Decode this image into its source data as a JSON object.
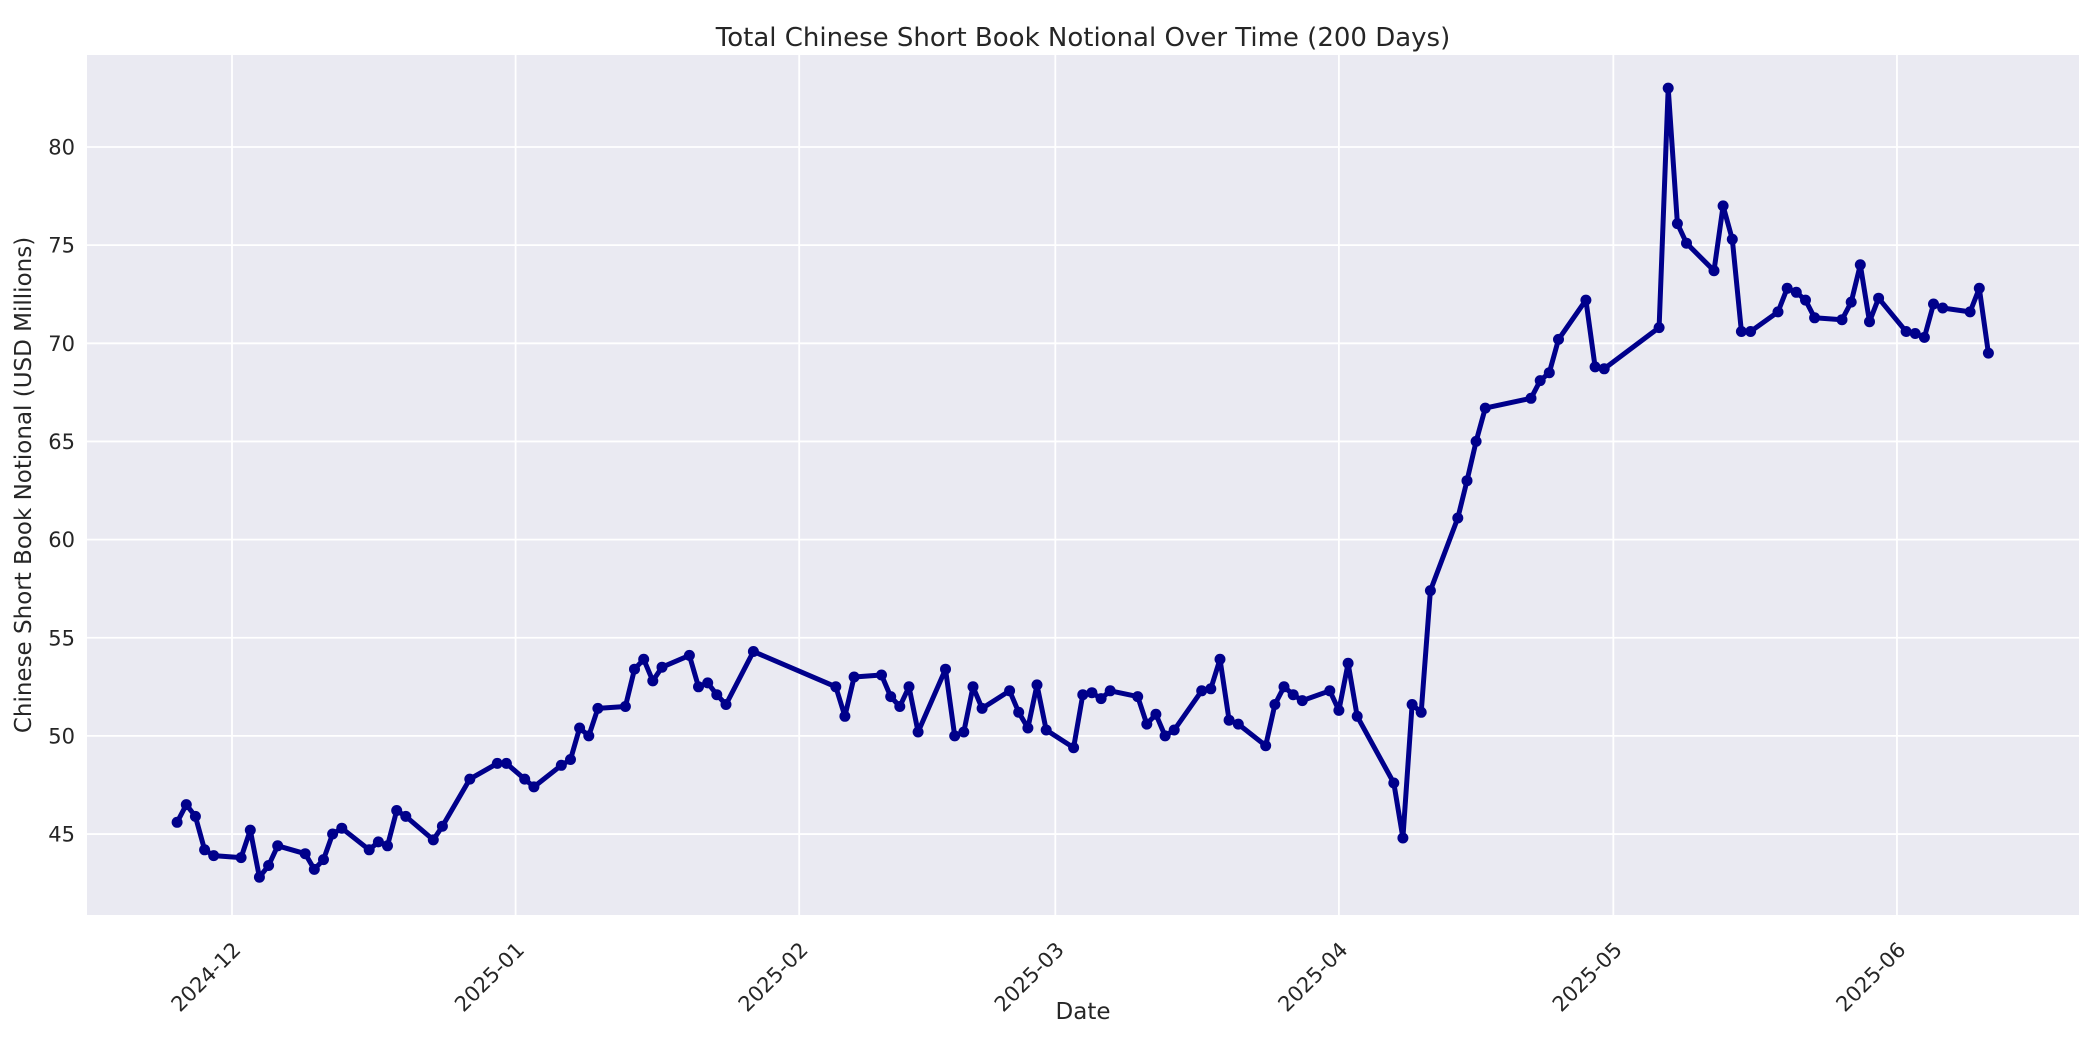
{
  "chart_data": {
    "type": "line",
    "title": "Total Chinese Short Book Notional Over Time (200 Days)",
    "xlabel": "Date",
    "ylabel": "Chinese Short Book Notional (USD Millions)",
    "legend": null,
    "grid": true,
    "background_color": "#eaeaf2",
    "grid_color": "#ffffff",
    "line_color": "#00008b",
    "marker": "o",
    "text_color": "#262626",
    "figure_color": "#ffffff",
    "ylim": [
      40.9,
      84.7
    ],
    "yticks": [
      45,
      50,
      55,
      60,
      65,
      70,
      75,
      80
    ],
    "xticks": [
      {
        "label": "2024-12",
        "date": "2024-12-01"
      },
      {
        "label": "2025-01",
        "date": "2025-01-01"
      },
      {
        "label": "2025-02",
        "date": "2025-02-01"
      },
      {
        "label": "2025-03",
        "date": "2025-03-01"
      },
      {
        "label": "2025-04",
        "date": "2025-04-01"
      },
      {
        "label": "2025-05",
        "date": "2025-05-01"
      },
      {
        "label": "2025-06",
        "date": "2025-06-01"
      }
    ],
    "x": [
      "2024-11-25",
      "2024-11-26",
      "2024-11-27",
      "2024-11-28",
      "2024-11-29",
      "2024-12-02",
      "2024-12-03",
      "2024-12-04",
      "2024-12-05",
      "2024-12-06",
      "2024-12-09",
      "2024-12-10",
      "2024-12-11",
      "2024-12-12",
      "2024-12-13",
      "2024-12-16",
      "2024-12-17",
      "2024-12-18",
      "2024-12-19",
      "2024-12-20",
      "2024-12-23",
      "2024-12-24",
      "2024-12-27",
      "2024-12-30",
      "2024-12-31",
      "2025-01-02",
      "2025-01-03",
      "2025-01-06",
      "2025-01-07",
      "2025-01-08",
      "2025-01-09",
      "2025-01-10",
      "2025-01-13",
      "2025-01-14",
      "2025-01-15",
      "2025-01-16",
      "2025-01-17",
      "2025-01-20",
      "2025-01-21",
      "2025-01-22",
      "2025-01-23",
      "2025-01-24",
      "2025-01-27",
      "2025-02-05",
      "2025-02-06",
      "2025-02-07",
      "2025-02-10",
      "2025-02-11",
      "2025-02-12",
      "2025-02-13",
      "2025-02-14",
      "2025-02-17",
      "2025-02-18",
      "2025-02-19",
      "2025-02-20",
      "2025-02-21",
      "2025-02-24",
      "2025-02-25",
      "2025-02-26",
      "2025-02-27",
      "2025-02-28",
      "2025-03-03",
      "2025-03-04",
      "2025-03-05",
      "2025-03-06",
      "2025-03-07",
      "2025-03-10",
      "2025-03-11",
      "2025-03-12",
      "2025-03-13",
      "2025-03-14",
      "2025-03-17",
      "2025-03-18",
      "2025-03-19",
      "2025-03-20",
      "2025-03-21",
      "2025-03-24",
      "2025-03-25",
      "2025-03-26",
      "2025-03-27",
      "2025-03-28",
      "2025-03-31",
      "2025-04-01",
      "2025-04-02",
      "2025-04-03",
      "2025-04-07",
      "2025-04-08",
      "2025-04-09",
      "2025-04-10",
      "2025-04-11",
      "2025-04-14",
      "2025-04-15",
      "2025-04-16",
      "2025-04-17",
      "2025-04-22",
      "2025-04-23",
      "2025-04-24",
      "2025-04-25",
      "2025-04-28",
      "2025-04-29",
      "2025-04-30",
      "2025-05-06",
      "2025-05-07",
      "2025-05-08",
      "2025-05-09",
      "2025-05-12",
      "2025-05-13",
      "2025-05-14",
      "2025-05-15",
      "2025-05-16",
      "2025-05-19",
      "2025-05-20",
      "2025-05-21",
      "2025-05-22",
      "2025-05-23",
      "2025-05-26",
      "2025-05-27",
      "2025-05-28",
      "2025-05-29",
      "2025-05-30",
      "2025-06-02",
      "2025-06-03",
      "2025-06-04",
      "2025-06-05",
      "2025-06-06",
      "2025-06-09",
      "2025-06-10",
      "2025-06-11"
    ],
    "y": [
      45.6,
      46.5,
      45.9,
      44.2,
      43.9,
      43.8,
      45.2,
      42.8,
      43.4,
      44.4,
      44.0,
      43.2,
      43.7,
      45.0,
      45.3,
      44.2,
      44.6,
      44.4,
      46.2,
      45.9,
      44.7,
      45.4,
      47.8,
      48.6,
      48.6,
      47.8,
      47.4,
      48.5,
      48.8,
      50.4,
      50.0,
      51.4,
      51.5,
      53.4,
      53.9,
      52.8,
      53.5,
      54.1,
      52.5,
      52.7,
      52.1,
      51.6,
      54.3,
      52.5,
      51.0,
      53.0,
      53.1,
      52.0,
      51.5,
      52.5,
      50.2,
      53.4,
      50.0,
      50.2,
      52.5,
      51.4,
      52.3,
      51.2,
      50.4,
      52.6,
      50.3,
      49.4,
      52.1,
      52.2,
      51.9,
      52.3,
      52.0,
      50.6,
      51.1,
      50.0,
      50.3,
      52.3,
      52.4,
      53.9,
      50.8,
      50.6,
      49.5,
      51.6,
      52.5,
      52.1,
      51.8,
      52.3,
      51.3,
      53.7,
      51.0,
      47.6,
      44.8,
      51.6,
      51.2,
      57.4,
      61.1,
      63.0,
      65.0,
      66.7,
      67.2,
      68.1,
      68.5,
      70.2,
      72.2,
      68.8,
      68.7,
      70.8,
      83.0,
      76.1,
      75.1,
      73.7,
      77.0,
      75.3,
      70.6,
      70.6,
      71.6,
      72.8,
      72.6,
      72.2,
      71.3,
      71.2,
      72.1,
      74.0,
      71.1,
      72.3,
      70.6,
      70.5,
      70.3,
      72.0,
      71.8,
      71.6,
      72.8,
      69.5
    ]
  }
}
